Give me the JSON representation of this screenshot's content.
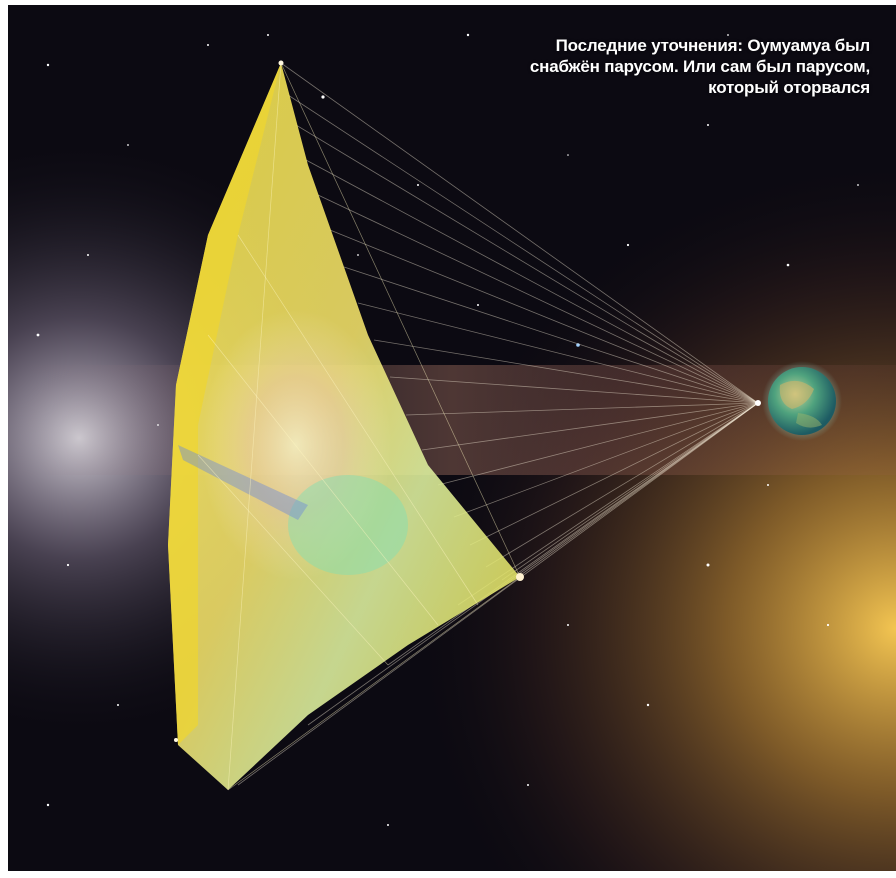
{
  "caption": {
    "lines": [
      "Последние уточнения: Оумуамуа был",
      "снабжён парусом. Или сам был парусом,",
      "который оторвался"
    ]
  },
  "illustration": {
    "subject": "light-sail",
    "colors": {
      "space": "#0c0a12",
      "sail": "#f4e04a",
      "glow": "#f3c77a",
      "planet": "#2f8f80"
    }
  }
}
